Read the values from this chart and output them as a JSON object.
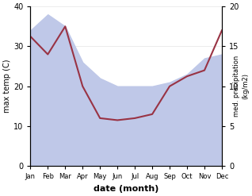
{
  "months": [
    "Jan",
    "Feb",
    "Mar",
    "Apr",
    "May",
    "Jun",
    "Jul",
    "Aug",
    "Sep",
    "Oct",
    "Nov",
    "Dec"
  ],
  "max_temp": [
    32.5,
    28.0,
    35.0,
    20.0,
    12.0,
    11.5,
    12.0,
    13.0,
    20.0,
    22.5,
    24.0,
    34.0
  ],
  "precipitation": [
    17.0,
    19.0,
    17.5,
    13.0,
    11.0,
    10.0,
    10.0,
    10.0,
    10.5,
    11.5,
    13.5,
    14.0
  ],
  "temp_color": "#993344",
  "precip_fill_color": "#bfc8e8",
  "background_color": "#ffffff",
  "xlabel": "date (month)",
  "ylabel_left": "max temp (C)",
  "ylabel_right": "med. precipitation\n(kg/m2)",
  "ylim_left": [
    0,
    40
  ],
  "ylim_right": [
    0,
    20
  ],
  "yticks_left": [
    0,
    10,
    20,
    30,
    40
  ],
  "yticks_right": [
    0,
    5,
    10,
    15,
    20
  ],
  "scale_factor": 2.0
}
